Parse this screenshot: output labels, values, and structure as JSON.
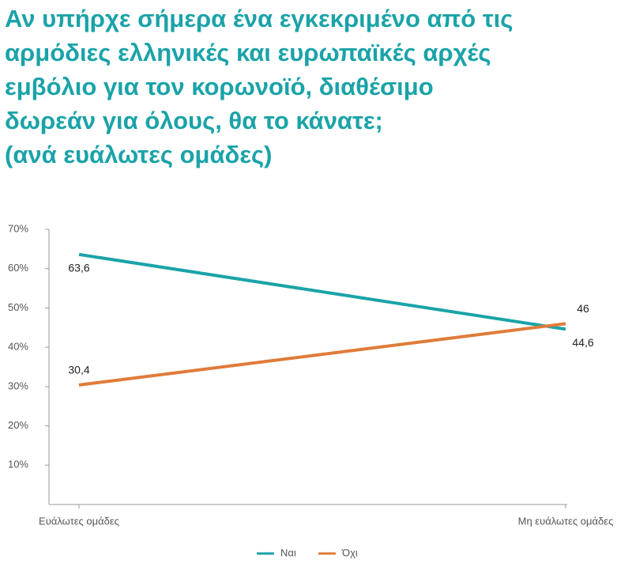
{
  "chart_data": {
    "type": "line",
    "title": [
      "Αν υπήρχε σήμερα ένα εγκεκριμένο από τις",
      "αρμόδιες ελληνικές και ευρωπαϊκές αρχές",
      "εμβόλιο για τον κορωνοϊό, διαθέσιμο",
      "δωρεάν για όλους, θα το κάνατε;",
      "(ανά ευάλωτες ομάδες)"
    ],
    "categories": [
      "Ευάλωτες ομάδες",
      "Μη ευάλωτες ομάδες"
    ],
    "series": [
      {
        "name": "Ναι",
        "color": "#1aa3a8",
        "values": [
          63.6,
          44.6
        ],
        "value_labels": [
          "63,6",
          "44,6"
        ]
      },
      {
        "name": "Όχι",
        "color": "#e07b39",
        "values": [
          30.4,
          46
        ],
        "value_labels": [
          "30,4",
          "46"
        ]
      }
    ],
    "ylim": [
      0,
      70
    ],
    "yticks": [
      {
        "value": 10,
        "label": "10%"
      },
      {
        "value": 20,
        "label": "20%"
      },
      {
        "value": 30,
        "label": "30%"
      },
      {
        "value": 40,
        "label": "40%"
      },
      {
        "value": 50,
        "label": "50%"
      },
      {
        "value": 60,
        "label": "60%"
      },
      {
        "value": 70,
        "label": "70%"
      }
    ],
    "legend": "bottom"
  }
}
